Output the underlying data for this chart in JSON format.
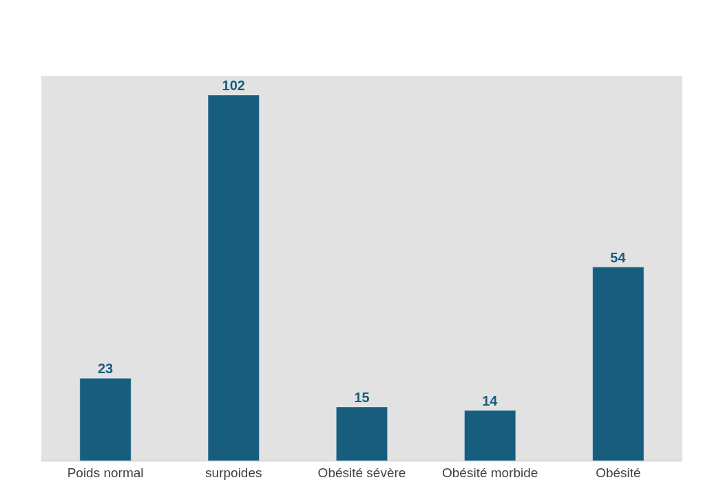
{
  "chart_data": {
    "type": "bar",
    "categories": [
      "Poids normal",
      "surpoides",
      "Obésité sévère",
      "Obésité morbide",
      "Obésité"
    ],
    "series": [
      {
        "color": "#175e7e",
        "values": [
          23,
          102,
          15,
          14,
          54
        ]
      }
    ],
    "data_labels": true,
    "grid": false
  }
}
